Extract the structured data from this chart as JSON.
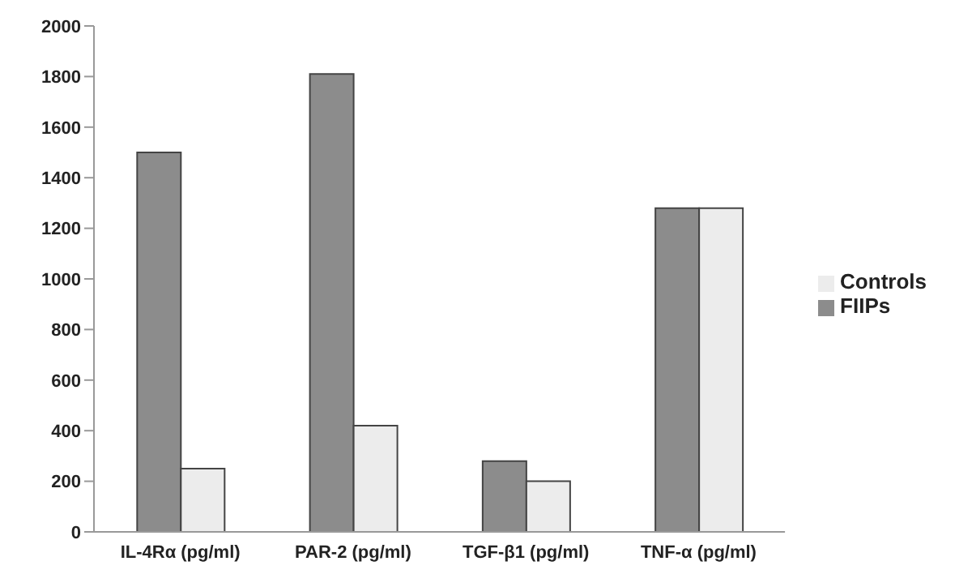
{
  "chart_data": {
    "type": "bar",
    "categories": [
      "IL-4Rα (pg/ml)",
      "PAR-2 (pg/ml)",
      "TGF-β1 (pg/ml)",
      "TNF-α (pg/ml)"
    ],
    "series": [
      {
        "name": "FIIPs",
        "color": "#8c8c8c",
        "values": [
          1500,
          1810,
          280,
          1280
        ]
      },
      {
        "name": "Controls",
        "color": "#ececec",
        "values": [
          250,
          420,
          200,
          1280
        ]
      }
    ],
    "ylim": [
      0,
      2000
    ],
    "yticks": [
      0,
      200,
      400,
      600,
      800,
      1000,
      1200,
      1400,
      1600,
      1800,
      2000
    ],
    "grid": false,
    "legend": "right"
  }
}
